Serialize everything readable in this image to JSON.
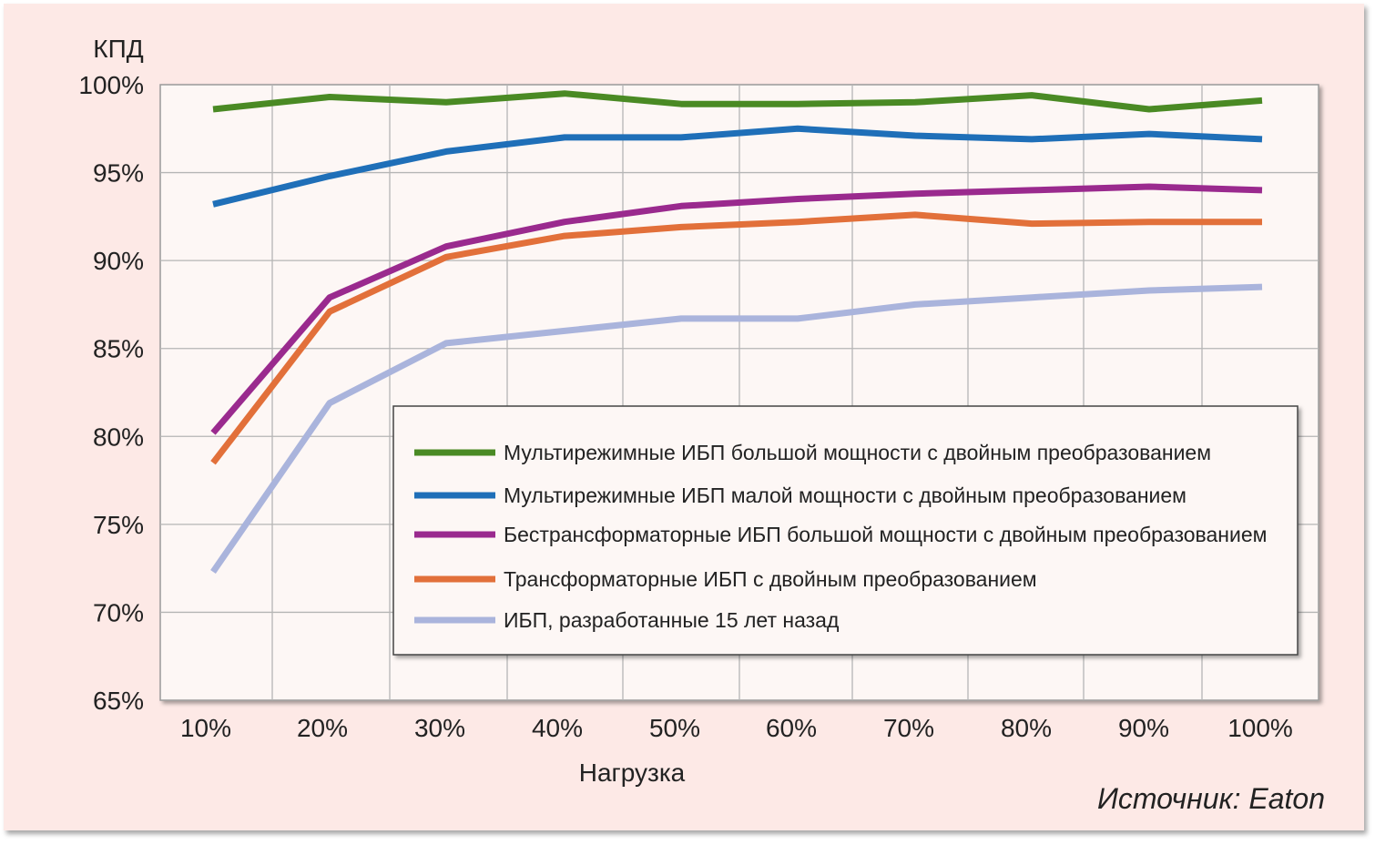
{
  "chart_data": {
    "type": "line",
    "ylabel": "КПД",
    "xlabel": "Нагрузка",
    "source": "Источник: Eaton",
    "categories": [
      "10%",
      "20%",
      "30%",
      "40%",
      "50%",
      "60%",
      "70%",
      "80%",
      "90%",
      "100%"
    ],
    "y_ticks": [
      "65%",
      "70%",
      "75%",
      "80%",
      "85%",
      "90%",
      "95%",
      "100%"
    ],
    "ylim": [
      65,
      100
    ],
    "grid": true,
    "legend_position": "center-right",
    "series": [
      {
        "name": "Мультирежимные ИБП большой мощности с двойным преобразованием",
        "color": "#4a8a24",
        "values": [
          98.6,
          99.3,
          99.0,
          99.5,
          98.9,
          98.9,
          99.0,
          99.4,
          98.6,
          99.1
        ]
      },
      {
        "name": "Мультирежимные ИБП малой мощности с двойным преобразованием",
        "color": "#1f6fb8",
        "values": [
          93.2,
          94.8,
          96.2,
          97.0,
          97.0,
          97.5,
          97.1,
          96.9,
          97.2,
          96.9
        ]
      },
      {
        "name": "Бестрансформаторные ИБП большой мощности с двойным преобразованием",
        "color": "#9a2a8e",
        "values": [
          80.2,
          87.9,
          90.8,
          92.2,
          93.1,
          93.5,
          93.8,
          94.0,
          94.2,
          94.0
        ]
      },
      {
        "name": "Трансформаторные ИБП с двойным преобразованием",
        "color": "#e2703a",
        "values": [
          78.5,
          87.1,
          90.2,
          91.4,
          91.9,
          92.2,
          92.6,
          92.1,
          92.2,
          92.2
        ]
      },
      {
        "name": "ИБП, разработанные 15 лет назад",
        "color": "#aab4dc",
        "values": [
          72.3,
          81.9,
          85.3,
          86.0,
          86.7,
          86.7,
          87.5,
          87.9,
          88.3,
          88.5
        ]
      }
    ]
  }
}
